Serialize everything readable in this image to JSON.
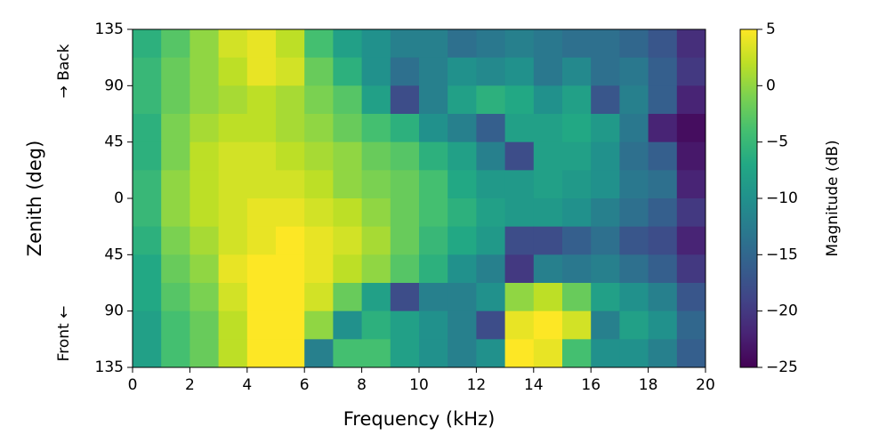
{
  "chart_data": {
    "type": "heatmap",
    "xlabel": "Frequency (kHz)",
    "ylabel": "Zenith (deg)",
    "annotations": [
      "→ Back",
      "Front ←"
    ],
    "colorbar_label": "Magnitude (dB)",
    "colormap": "viridis",
    "xlim": [
      0,
      20
    ],
    "xticks": [
      0,
      2,
      4,
      6,
      8,
      10,
      12,
      14,
      16,
      18,
      20
    ],
    "ylim": [
      -135,
      135
    ],
    "yticks": [
      135,
      90,
      45,
      0,
      {
        "value": -45,
        "label": "45"
      },
      {
        "value": -90,
        "label": "90"
      },
      {
        "value": -135,
        "label": "135"
      }
    ],
    "clim": [
      -25,
      5
    ],
    "cticks": [
      5,
      0,
      {
        "value": -5,
        "label": "−5"
      },
      {
        "value": -10,
        "label": "−10"
      },
      {
        "value": -15,
        "label": "−15"
      },
      {
        "value": -20,
        "label": "−20"
      },
      {
        "value": -25,
        "label": "−25"
      }
    ],
    "x": [
      0.5,
      1.5,
      2.5,
      3.5,
      4.5,
      5.5,
      6.5,
      7.5,
      8.5,
      9.5,
      10.5,
      11.5,
      12.5,
      13.5,
      14.5,
      15.5,
      16.5,
      17.5,
      18.5,
      19.5
    ],
    "y": [
      123.75,
      101.25,
      78.75,
      56.25,
      33.75,
      11.25,
      -11.25,
      -33.75,
      -56.25,
      -78.75,
      -101.25,
      -123.75
    ],
    "z": [
      [
        -6,
        -3,
        0,
        3,
        4,
        2,
        -4,
        -8,
        -10,
        -12,
        -12,
        -14,
        -13,
        -12,
        -13,
        -14,
        -14,
        -15,
        -17,
        -21
      ],
      [
        -5,
        -2,
        0,
        2,
        4,
        3,
        -2,
        -6,
        -10,
        -14,
        -12,
        -10,
        -11,
        -10,
        -13,
        -11,
        -14,
        -13,
        -16,
        -20
      ],
      [
        -5,
        -2,
        0,
        1,
        2,
        1,
        -1,
        -3,
        -8,
        -18,
        -12,
        -8,
        -6,
        -7,
        -10,
        -8,
        -17,
        -12,
        -16,
        -22
      ],
      [
        -6,
        -1,
        1,
        2,
        2,
        1,
        0,
        -2,
        -4,
        -6,
        -10,
        -12,
        -16,
        -8,
        -8,
        -7,
        -9,
        -13,
        -22,
        -24
      ],
      [
        -6,
        -1,
        2,
        3,
        3,
        2,
        1,
        0,
        -2,
        -3,
        -6,
        -8,
        -12,
        -18,
        -8,
        -8,
        -10,
        -14,
        -16,
        -23
      ],
      [
        -5,
        0,
        2,
        3,
        3,
        3,
        2,
        0,
        -1,
        -2,
        -4,
        -7,
        -9,
        -9,
        -8,
        -9,
        -10,
        -13,
        -14,
        -22
      ],
      [
        -5,
        0,
        2,
        3,
        4,
        4,
        3,
        2,
        0,
        -2,
        -4,
        -6,
        -8,
        -9,
        -9,
        -10,
        -12,
        -14,
        -16,
        -20
      ],
      [
        -6,
        -1,
        1,
        3,
        4,
        5,
        4,
        3,
        1,
        -2,
        -5,
        -7,
        -9,
        -18,
        -18,
        -16,
        -14,
        -17,
        -18,
        -22
      ],
      [
        -7,
        -2,
        0,
        4,
        5,
        5,
        4,
        2,
        0,
        -3,
        -6,
        -10,
        -12,
        -20,
        -12,
        -13,
        -12,
        -14,
        -16,
        -20
      ],
      [
        -7,
        -3,
        -1,
        3,
        5,
        5,
        3,
        -2,
        -8,
        -18,
        -12,
        -12,
        -10,
        0,
        2,
        -2,
        -8,
        -10,
        -12,
        -17
      ],
      [
        -8,
        -4,
        -2,
        2,
        5,
        5,
        0,
        -10,
        -6,
        -8,
        -10,
        -12,
        -18,
        4,
        5,
        3,
        -12,
        -8,
        -10,
        -15
      ],
      [
        -8,
        -4,
        -2,
        2,
        5,
        5,
        -12,
        -4,
        -4,
        -8,
        -10,
        -12,
        -10,
        5,
        4,
        -4,
        -10,
        -10,
        -12,
        -16
      ]
    ]
  }
}
